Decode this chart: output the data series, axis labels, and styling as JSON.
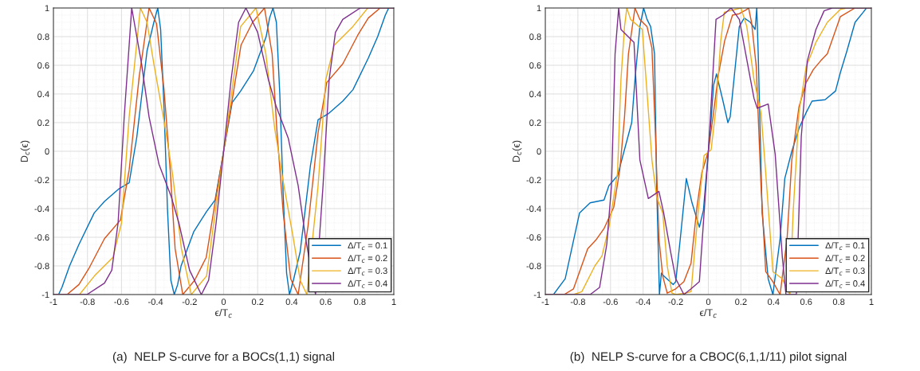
{
  "chart_data": [
    {
      "type": "line",
      "title": "(a)  NELP S-curve for a BOCs(1,1) signal",
      "xlabel": "ϵ/T$_{c}$",
      "ylabel": "D$_{c}$(ϵ)",
      "xlim": [
        -1,
        1
      ],
      "ylim": [
        -1,
        1
      ],
      "xticks": [
        -1,
        -0.8,
        -0.6,
        -0.4,
        -0.2,
        0,
        0.2,
        0.4,
        0.6,
        0.8,
        1
      ],
      "yticks": [
        -1,
        -0.8,
        -0.6,
        -0.4,
        -0.2,
        0,
        0.2,
        0.4,
        0.6,
        0.8,
        1
      ],
      "grid": true,
      "legend": "bottom right",
      "marker": "none",
      "line_style": "solid",
      "series": [
        {
          "name": "Δ/T$_{c}$ = 0.1",
          "color": "#0072bd",
          "x": [
            -1,
            -0.97,
            -0.95,
            -0.905,
            -0.85,
            -0.76,
            -0.7,
            -0.613,
            -0.555,
            -0.51,
            -0.45,
            -0.41,
            -0.387,
            -0.37,
            -0.35,
            -0.33,
            -0.31,
            -0.29,
            -0.27,
            -0.25,
            -0.175,
            -0.1,
            -0.05,
            0,
            0.05,
            0.1,
            0.175,
            0.25,
            0.27,
            0.29,
            0.31,
            0.33,
            0.35,
            0.37,
            0.387,
            0.41,
            0.45,
            0.51,
            0.555,
            0.613,
            0.7,
            0.76,
            0.85,
            0.905,
            0.95,
            0.97,
            1
          ],
          "values": [
            -1,
            -1,
            -0.95,
            -0.8,
            -0.65,
            -0.43,
            -0.35,
            -0.26,
            -0.22,
            0.1,
            0.7,
            0.9,
            1,
            0.85,
            0.3,
            -0.4,
            -0.9,
            -1,
            -0.93,
            -0.8,
            -0.56,
            -0.42,
            -0.34,
            0,
            0.34,
            0.42,
            0.56,
            0.8,
            0.93,
            1,
            0.9,
            0.4,
            -0.3,
            -0.85,
            -1,
            -0.9,
            -0.7,
            -0.1,
            0.22,
            0.26,
            0.35,
            0.43,
            0.65,
            0.8,
            0.95,
            1,
            1
          ]
        },
        {
          "name": "Δ/T$_{c}$ = 0.2",
          "color": "#d95319",
          "x": [
            -1,
            -0.92,
            -0.85,
            -0.788,
            -0.7,
            -0.606,
            -0.555,
            -0.496,
            -0.438,
            -0.394,
            -0.35,
            -0.314,
            -0.285,
            -0.24,
            -0.17,
            -0.102,
            -0.044,
            0,
            0.044,
            0.102,
            0.17,
            0.24,
            0.285,
            0.314,
            0.35,
            0.394,
            0.438,
            0.496,
            0.555,
            0.606,
            0.7,
            0.788,
            0.85,
            0.92,
            1
          ],
          "values": [
            -1,
            -1,
            -0.93,
            -0.81,
            -0.61,
            -0.48,
            -0.13,
            0.52,
            1,
            0.89,
            0.43,
            -0.13,
            -0.68,
            -1,
            -0.9,
            -0.74,
            -0.31,
            0,
            0.31,
            0.74,
            0.9,
            1,
            0.68,
            0.13,
            -0.43,
            -0.89,
            -1,
            -0.52,
            0.13,
            0.48,
            0.61,
            0.81,
            0.93,
            1,
            1
          ]
        },
        {
          "name": "Δ/T$_{c}$ = 0.3",
          "color": "#edb120",
          "x": [
            -1,
            -0.847,
            -0.759,
            -0.65,
            -0.6,
            -0.555,
            -0.489,
            -0.45,
            -0.41,
            -0.35,
            -0.3,
            -0.248,
            -0.19,
            -0.1,
            -0.044,
            0,
            0.044,
            0.1,
            0.19,
            0.248,
            0.3,
            0.35,
            0.41,
            0.45,
            0.489,
            0.555,
            0.6,
            0.65,
            0.759,
            0.847,
            1
          ],
          "values": [
            -1,
            -1,
            -0.87,
            -0.74,
            -0.5,
            0.24,
            1,
            0.9,
            0.61,
            0.21,
            -0.16,
            -0.68,
            -1,
            -0.87,
            -0.38,
            0,
            0.38,
            0.87,
            1,
            0.68,
            0.16,
            -0.21,
            -0.61,
            -0.9,
            -1,
            -0.24,
            0.5,
            0.74,
            0.87,
            1,
            1
          ]
        },
        {
          "name": "Δ/T$_{c}$ = 0.4",
          "color": "#7e2f8e",
          "x": [
            -1,
            -0.803,
            -0.7,
            -0.657,
            -0.62,
            -0.584,
            -0.54,
            -0.482,
            -0.438,
            -0.38,
            -0.307,
            -0.263,
            -0.2,
            -0.131,
            -0.088,
            -0.044,
            0,
            0.044,
            0.088,
            0.131,
            0.2,
            0.263,
            0.307,
            0.38,
            0.438,
            0.482,
            0.54,
            0.584,
            0.62,
            0.657,
            0.7,
            0.803,
            1
          ],
          "values": [
            -1,
            -1,
            -0.92,
            -0.83,
            -0.5,
            0.24,
            1,
            0.61,
            0.24,
            -0.09,
            -0.32,
            -0.5,
            -0.83,
            -1,
            -0.9,
            -0.5,
            0,
            0.5,
            0.9,
            1,
            0.83,
            0.5,
            0.32,
            0.09,
            -0.24,
            -0.61,
            -1,
            -0.24,
            0.5,
            0.83,
            0.92,
            1,
            1
          ]
        }
      ]
    },
    {
      "type": "line",
      "title": "(b)  NELP S-curve for a CBOC(6,1,1/11) pilot signal",
      "xlabel": "ϵ/T$_{c}$",
      "ylabel": "D$_{c}$(ϵ)",
      "xlim": [
        -1,
        1
      ],
      "ylim": [
        -1,
        1
      ],
      "xticks": [
        -1,
        -0.8,
        -0.6,
        -0.4,
        -0.2,
        0,
        0.2,
        0.4,
        0.6,
        0.8,
        1
      ],
      "yticks": [
        -1,
        -0.8,
        -0.6,
        -0.4,
        -0.2,
        0,
        0.2,
        0.4,
        0.6,
        0.8,
        1
      ],
      "grid": true,
      "legend": "bottom right",
      "marker": "none",
      "line_style": "solid",
      "series": [
        {
          "name": "Δ/T$_{c}$ = 0.1",
          "color": "#0072bd",
          "x": [
            -1,
            -0.95,
            -0.878,
            -0.79,
            -0.725,
            -0.64,
            -0.61,
            -0.557,
            -0.47,
            -0.45,
            -0.42,
            -0.397,
            -0.376,
            -0.354,
            -0.33,
            -0.317,
            -0.3,
            -0.288,
            -0.274,
            -0.215,
            -0.2,
            -0.172,
            -0.135,
            -0.1,
            -0.055,
            -0.03,
            0,
            0.017,
            0.032,
            0.05,
            0.09,
            0.12,
            0.134,
            0.19,
            0.22,
            0.258,
            0.287,
            0.297,
            0.306,
            0.33,
            0.367,
            0.396,
            0.44,
            0.469,
            0.512,
            0.556,
            0.6,
            0.636,
            0.716,
            0.78,
            0.81,
            0.85,
            0.9,
            0.95,
            0.97,
            1
          ],
          "values": [
            -1,
            -1,
            -0.89,
            -0.43,
            -0.36,
            -0.34,
            -0.24,
            -0.17,
            0.2,
            0.5,
            0.87,
            1,
            0.92,
            0.87,
            0.68,
            -0.24,
            -1,
            -0.85,
            -0.87,
            -0.93,
            -0.91,
            -0.61,
            -0.19,
            -0.36,
            -0.53,
            -0.41,
            0,
            0.22,
            0.46,
            0.54,
            0.35,
            0.2,
            0.24,
            0.87,
            0.93,
            0.9,
            0.85,
            1,
            0.68,
            -0.43,
            -0.89,
            -1,
            -0.61,
            -0.19,
            0,
            0.16,
            0.27,
            0.35,
            0.36,
            0.42,
            0.55,
            0.7,
            0.9,
            0.97,
            1,
            1
          ]
        },
        {
          "name": "Δ/T$_{c}$ = 0.2",
          "color": "#d95319",
          "x": [
            -1,
            -0.885,
            -0.827,
            -0.74,
            -0.69,
            -0.64,
            -0.58,
            -0.543,
            -0.514,
            -0.49,
            -0.45,
            -0.42,
            -0.376,
            -0.346,
            -0.325,
            -0.303,
            -0.28,
            -0.252,
            -0.2,
            -0.15,
            -0.106,
            -0.07,
            -0.04,
            0,
            0.032,
            0.061,
            0.1,
            0.148,
            0.19,
            0.236,
            0.247,
            0.265,
            0.294,
            0.323,
            0.352,
            0.396,
            0.44,
            0.483,
            0.512,
            0.556,
            0.6,
            0.644,
            0.688,
            0.73,
            0.81,
            0.9,
            1
          ],
          "values": [
            -1,
            -1,
            -0.96,
            -0.68,
            -0.62,
            -0.54,
            -0.39,
            -0.13,
            0.24,
            0.68,
            1,
            0.92,
            0.87,
            0.72,
            0.13,
            -0.61,
            -0.87,
            -0.99,
            -0.96,
            -0.91,
            -0.78,
            -0.39,
            -0.15,
            0,
            0.27,
            0.53,
            0.77,
            0.95,
            0.96,
            0.99,
            1,
            0.9,
            0.59,
            -0.24,
            -0.84,
            -0.91,
            -1,
            -0.61,
            -0.06,
            0.31,
            0.48,
            0.57,
            0.63,
            0.68,
            0.94,
            1,
            1
          ]
        },
        {
          "name": "Δ/T$_{c}$ = 0.3",
          "color": "#edb120",
          "x": [
            -1,
            -0.827,
            -0.776,
            -0.696,
            -0.652,
            -0.608,
            -0.557,
            -0.536,
            -0.514,
            -0.5,
            -0.477,
            -0.405,
            -0.376,
            -0.346,
            -0.317,
            -0.28,
            -0.252,
            -0.223,
            -0.2,
            -0.143,
            -0.106,
            -0.063,
            -0.026,
            0.017,
            0.047,
            0.076,
            0.098,
            0.2,
            0.236,
            0.28,
            0.323,
            0.352,
            0.396,
            0.454,
            0.5,
            0.52,
            0.556,
            0.6,
            0.66,
            0.73,
            0.81,
            0.85,
            1
          ],
          "values": [
            -1,
            -1,
            -0.98,
            -0.8,
            -0.73,
            -0.52,
            -0.15,
            0.5,
            0.87,
            1,
            0.92,
            0.85,
            0.41,
            -0.06,
            -0.32,
            -0.43,
            -0.8,
            -0.99,
            -1,
            -0.99,
            -0.98,
            -0.43,
            -0.03,
            0.01,
            0.3,
            0.77,
            0.97,
            1,
            0.87,
            0.5,
            0.27,
            -0.15,
            -0.84,
            -0.89,
            -1,
            -0.43,
            0.27,
            0.59,
            0.76,
            0.9,
            0.99,
            1,
            1
          ]
        },
        {
          "name": "Δ/T$_{c}$ = 0.4",
          "color": "#7e2f8e",
          "x": [
            -1,
            -0.725,
            -0.667,
            -0.623,
            -0.594,
            -0.572,
            -0.55,
            -0.536,
            -0.456,
            -0.42,
            -0.368,
            -0.303,
            -0.274,
            -0.23,
            -0.2,
            -0.172,
            -0.15,
            -0.106,
            -0.055,
            -0.026,
            0,
            0.025,
            0.047,
            0.09,
            0.14,
            0.19,
            0.28,
            0.3,
            0.367,
            0.41,
            0.454,
            0.476,
            0.54,
            0.57,
            0.607,
            0.66,
            0.71,
            0.76,
            1
          ],
          "values": [
            -1,
            -1,
            -0.95,
            -0.65,
            -0.24,
            0.68,
            1,
            0.85,
            0.76,
            -0.06,
            -0.33,
            -0.28,
            -0.43,
            -0.71,
            -0.89,
            -0.95,
            -1,
            -0.96,
            -0.91,
            -0.43,
            0,
            0.48,
            0.92,
            0.95,
            1,
            0.92,
            0.37,
            0.3,
            0.33,
            -0.02,
            -0.74,
            -1,
            -1,
            0.1,
            0.63,
            0.85,
            0.98,
            1,
            1
          ]
        }
      ]
    }
  ]
}
